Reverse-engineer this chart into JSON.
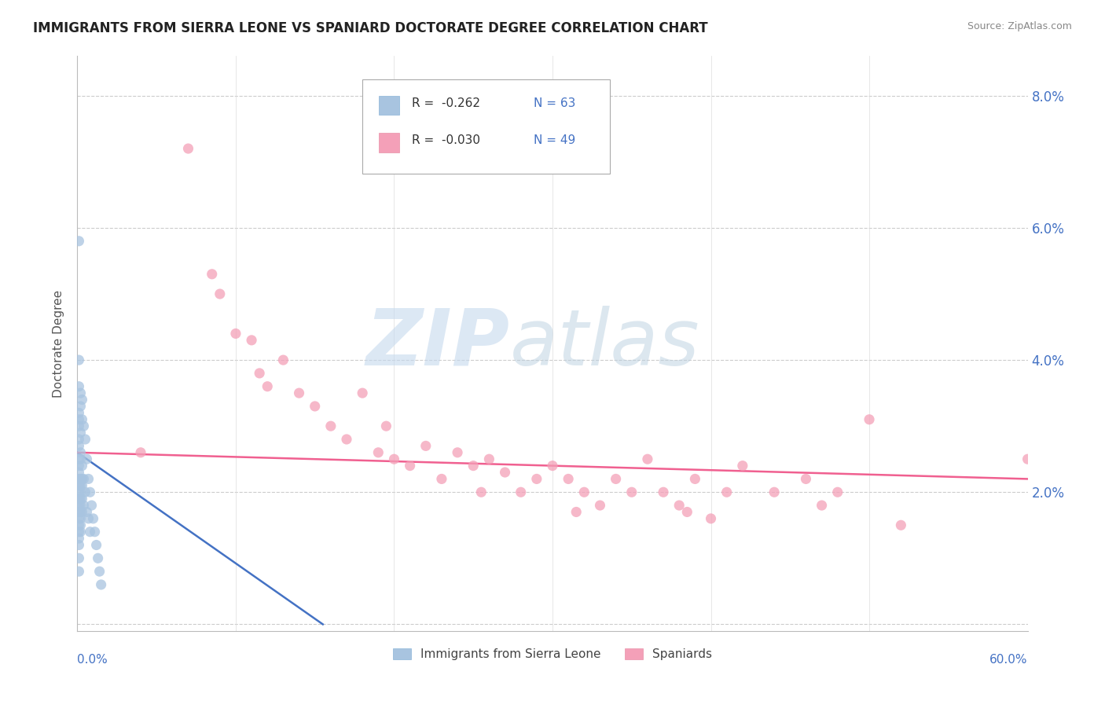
{
  "title": "IMMIGRANTS FROM SIERRA LEONE VS SPANIARD DOCTORATE DEGREE CORRELATION CHART",
  "source": "Source: ZipAtlas.com",
  "ylabel": "Doctorate Degree",
  "y_ticks": [
    0.0,
    0.02,
    0.04,
    0.06,
    0.08
  ],
  "y_tick_labels": [
    "",
    "2.0%",
    "4.0%",
    "6.0%",
    "8.0%"
  ],
  "x_range": [
    0,
    0.6
  ],
  "y_range": [
    -0.001,
    0.086
  ],
  "legend_labels": [
    "Immigrants from Sierra Leone",
    "Spaniards"
  ],
  "legend_r": [
    "-0.262",
    "-0.030"
  ],
  "legend_n": [
    "63",
    "49"
  ],
  "color_blue": "#a8c4e0",
  "color_pink": "#f4a0b8",
  "line_blue": "#4472c4",
  "line_pink": "#f06090",
  "blue_points_x": [
    0.001,
    0.001,
    0.001,
    0.001,
    0.001,
    0.001,
    0.001,
    0.001,
    0.001,
    0.001,
    0.001,
    0.001,
    0.001,
    0.001,
    0.001,
    0.001,
    0.001,
    0.001,
    0.001,
    0.001,
    0.001,
    0.002,
    0.002,
    0.002,
    0.002,
    0.002,
    0.002,
    0.002,
    0.002,
    0.002,
    0.002,
    0.002,
    0.002,
    0.002,
    0.002,
    0.003,
    0.003,
    0.003,
    0.003,
    0.003,
    0.003,
    0.003,
    0.004,
    0.004,
    0.004,
    0.005,
    0.005,
    0.006,
    0.006,
    0.007,
    0.007,
    0.008,
    0.008,
    0.009,
    0.01,
    0.011,
    0.012,
    0.013,
    0.014,
    0.015,
    0.001,
    0.001,
    0.001
  ],
  "blue_points_y": [
    0.036,
    0.032,
    0.031,
    0.03,
    0.028,
    0.027,
    0.025,
    0.024,
    0.023,
    0.022,
    0.021,
    0.02,
    0.019,
    0.018,
    0.017,
    0.016,
    0.015,
    0.014,
    0.013,
    0.012,
    0.01,
    0.035,
    0.033,
    0.029,
    0.026,
    0.025,
    0.022,
    0.021,
    0.02,
    0.019,
    0.018,
    0.017,
    0.016,
    0.015,
    0.014,
    0.034,
    0.031,
    0.024,
    0.022,
    0.021,
    0.019,
    0.017,
    0.03,
    0.022,
    0.018,
    0.028,
    0.02,
    0.025,
    0.017,
    0.022,
    0.016,
    0.02,
    0.014,
    0.018,
    0.016,
    0.014,
    0.012,
    0.01,
    0.008,
    0.006,
    0.058,
    0.04,
    0.008
  ],
  "pink_points_x": [
    0.04,
    0.07,
    0.085,
    0.09,
    0.1,
    0.11,
    0.115,
    0.12,
    0.13,
    0.14,
    0.15,
    0.16,
    0.17,
    0.18,
    0.19,
    0.195,
    0.2,
    0.21,
    0.22,
    0.23,
    0.24,
    0.25,
    0.255,
    0.26,
    0.27,
    0.28,
    0.29,
    0.3,
    0.31,
    0.315,
    0.32,
    0.33,
    0.34,
    0.35,
    0.36,
    0.37,
    0.38,
    0.385,
    0.39,
    0.4,
    0.41,
    0.42,
    0.44,
    0.46,
    0.47,
    0.48,
    0.5,
    0.52,
    0.6
  ],
  "pink_points_y": [
    0.026,
    0.072,
    0.053,
    0.05,
    0.044,
    0.043,
    0.038,
    0.036,
    0.04,
    0.035,
    0.033,
    0.03,
    0.028,
    0.035,
    0.026,
    0.03,
    0.025,
    0.024,
    0.027,
    0.022,
    0.026,
    0.024,
    0.02,
    0.025,
    0.023,
    0.02,
    0.022,
    0.024,
    0.022,
    0.017,
    0.02,
    0.018,
    0.022,
    0.02,
    0.025,
    0.02,
    0.018,
    0.017,
    0.022,
    0.016,
    0.02,
    0.024,
    0.02,
    0.022,
    0.018,
    0.02,
    0.031,
    0.015,
    0.025
  ],
  "blue_trend_x": [
    0.0,
    0.155
  ],
  "blue_trend_y": [
    0.026,
    0.0
  ],
  "pink_trend_x": [
    0.0,
    0.6
  ],
  "pink_trend_y": [
    0.026,
    0.022
  ]
}
